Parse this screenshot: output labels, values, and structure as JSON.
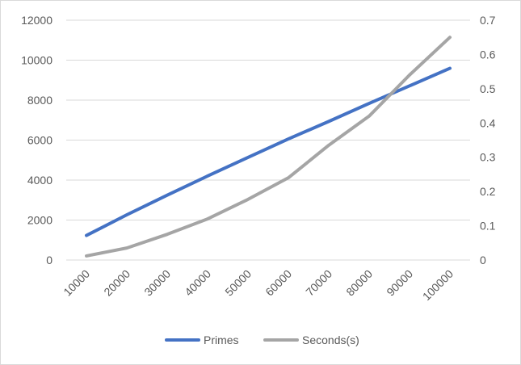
{
  "chart_data": {
    "type": "line",
    "categories": [
      "10000",
      "20000",
      "30000",
      "40000",
      "50000",
      "60000",
      "70000",
      "80000",
      "90000",
      "100000"
    ],
    "series": [
      {
        "name": "Primes",
        "axis": "left",
        "color": "#4472C4",
        "values": [
          1229,
          2262,
          3245,
          4203,
          5133,
          6057,
          6935,
          7837,
          8713,
          9592
        ]
      },
      {
        "name": "Seconds(s)",
        "axis": "right",
        "color": "#A5A5A5",
        "values": [
          0.012,
          0.035,
          0.075,
          0.12,
          0.177,
          0.24,
          0.335,
          0.42,
          0.54,
          0.65
        ]
      }
    ],
    "y_left": {
      "ticks": [
        "0",
        "2000",
        "4000",
        "6000",
        "8000",
        "10000",
        "12000"
      ],
      "ylim": [
        0,
        12000
      ]
    },
    "y_right": {
      "ticks": [
        "0",
        "0.1",
        "0.2",
        "0.3",
        "0.4",
        "0.5",
        "0.6",
        "0.7"
      ],
      "ylim": [
        0,
        0.7
      ]
    },
    "grid": true,
    "legend_position": "bottom",
    "title": "",
    "xlabel": "",
    "ylabel": ""
  }
}
